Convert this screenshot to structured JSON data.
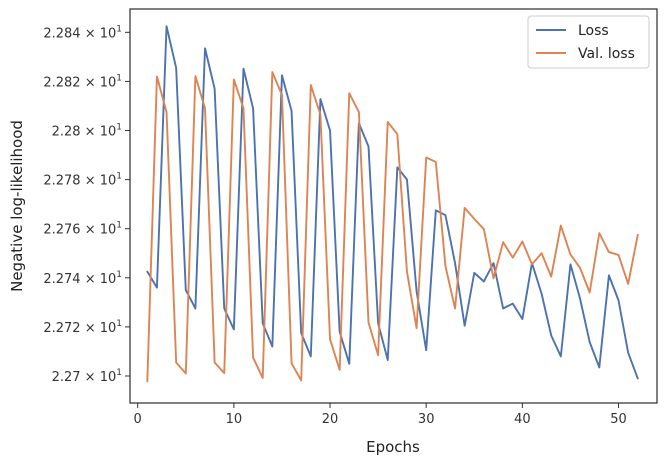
{
  "chart_data": {
    "type": "line",
    "title": "",
    "xlabel": "Epochs",
    "ylabel": "Negative log-likelihood",
    "xlim": [
      -0.8,
      54.0
    ],
    "ylim": [
      22.689,
      22.8495
    ],
    "x_ticks": [
      0,
      10,
      20,
      30,
      40,
      50
    ],
    "x_tick_labels": [
      "0",
      "10",
      "20",
      "30",
      "40",
      "50"
    ],
    "y_ticks": [
      22.7,
      22.72,
      22.74,
      22.76,
      22.78,
      22.8,
      22.82,
      22.84
    ],
    "y_tick_mantissas": [
      "2.27",
      "2.272",
      "2.274",
      "2.276",
      "2.278",
      "2.28",
      "2.282",
      "2.284"
    ],
    "y_tick_base": "10",
    "y_tick_exponent": "1",
    "y_tick_times": "×",
    "grid": false,
    "legend_position": "top-right",
    "x": [
      1,
      2,
      3,
      4,
      5,
      6,
      7,
      8,
      9,
      10,
      11,
      12,
      13,
      14,
      15,
      16,
      17,
      18,
      19,
      20,
      21,
      22,
      23,
      24,
      25,
      26,
      27,
      28,
      29,
      30,
      31,
      32,
      33,
      34,
      35,
      36,
      37,
      38,
      39,
      40,
      41,
      42,
      43,
      44,
      45,
      46,
      47,
      48,
      49,
      50,
      51,
      52
    ],
    "series": [
      {
        "name": "Loss",
        "color": "#4c72b0",
        "values": [
          22.7425,
          22.736,
          22.8425,
          22.8255,
          22.735,
          22.7275,
          22.8335,
          22.817,
          22.7275,
          22.719,
          22.8252,
          22.809,
          22.7215,
          22.712,
          22.8225,
          22.808,
          22.7175,
          22.708,
          22.8128,
          22.8,
          22.718,
          22.705,
          22.803,
          22.7935,
          22.7215,
          22.7065,
          22.785,
          22.78,
          22.7345,
          22.7105,
          22.7675,
          22.7655,
          22.746,
          22.7205,
          22.742,
          22.7385,
          22.746,
          22.7275,
          22.7295,
          22.7232,
          22.746,
          22.7335,
          22.7165,
          22.708,
          22.7455,
          22.7315,
          22.7138,
          22.7035,
          22.741,
          22.7308,
          22.7095,
          22.699
        ]
      },
      {
        "name": "Val. loss",
        "color": "#dd8452",
        "values": [
          22.6978,
          22.822,
          22.8075,
          22.7055,
          22.701,
          22.8222,
          22.809,
          22.7055,
          22.7012,
          22.8208,
          22.809,
          22.7075,
          22.6992,
          22.8238,
          22.8145,
          22.7052,
          22.6982,
          22.8185,
          22.8065,
          22.715,
          22.7025,
          22.8152,
          22.8075,
          22.7218,
          22.7085,
          22.8035,
          22.7985,
          22.7425,
          22.7195,
          22.789,
          22.7872,
          22.7448,
          22.7275,
          22.7685,
          22.764,
          22.7598,
          22.7398,
          22.7545,
          22.7482,
          22.7548,
          22.7455,
          22.75,
          22.7405,
          22.7613,
          22.7495,
          22.744,
          22.734,
          22.7582,
          22.7505,
          22.7493,
          22.7375,
          22.7575
        ]
      }
    ]
  }
}
